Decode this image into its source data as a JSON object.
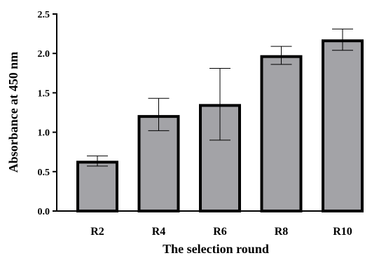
{
  "chart_data": {
    "type": "bar",
    "title": "",
    "xlabel": "The selection round",
    "ylabel": "Absorbance at 450 nm",
    "categories": [
      "R2",
      "R4",
      "R6",
      "R8",
      "R10"
    ],
    "values": [
      0.62,
      1.2,
      1.34,
      1.96,
      2.16
    ],
    "error_low": [
      0.57,
      1.02,
      0.9,
      1.86,
      2.04
    ],
    "error_high": [
      0.7,
      1.43,
      1.81,
      2.09,
      2.31
    ],
    "ylim": [
      0,
      2.5
    ],
    "yticks": [
      "0.0",
      "0.5",
      "1.0",
      "1.5",
      "2.0",
      "2.5"
    ],
    "grid": false,
    "legend": "none",
    "colors": {
      "bar_fill": "#a3a3a7",
      "bar_edge": "#000000",
      "axis": "#000000"
    }
  }
}
